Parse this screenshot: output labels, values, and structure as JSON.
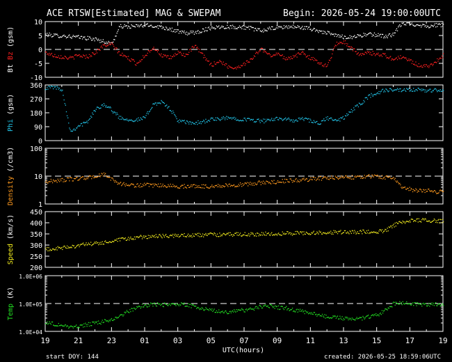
{
  "header": {
    "title": "ACE RTSW[Estimated] MAG & SWEPAM",
    "begin": "Begin: 2026-05-24 19:00:00UTC"
  },
  "footer": {
    "start_doy": "start DOY: 144",
    "created": "created: 2026-05-25 18:59:06UTC"
  },
  "colors": {
    "bt": "#ffffff",
    "bz": "#ff2020",
    "phi": "#22c4e8",
    "density": "#ff9a1e",
    "speed": "#f2ec1e",
    "temp": "#22e022",
    "frame": "#ffffff",
    "background": "#000000"
  },
  "chart_data": [
    {
      "type": "scatter",
      "id": "mag",
      "ylabel": [
        "Bt",
        "Bz",
        "(gsm)"
      ],
      "ylabel_colors": [
        "#ffffff",
        "#ff2020",
        "#ffffff"
      ],
      "ylim": [
        -10,
        10
      ],
      "yticks": [
        -10,
        -5,
        0,
        5,
        10
      ],
      "reference_line": 0,
      "series": [
        {
          "name": "Bt",
          "color": "#ffffff",
          "x": [
            0,
            0.5,
            1,
            1.5,
            2,
            2.5,
            3,
            3.5,
            4,
            4.5,
            5,
            5.5,
            6,
            6.5,
            7,
            7.5,
            8,
            8.5,
            9,
            9.5,
            10,
            10.5,
            11,
            11.5,
            12,
            12.5,
            13,
            13.5,
            14,
            14.5,
            15,
            15.5,
            16,
            16.5,
            17,
            17.5,
            18,
            18.5,
            19,
            19.5,
            20,
            20.5,
            21,
            21.5,
            22,
            22.5,
            23,
            23.5,
            24
          ],
          "y": [
            5.5,
            5.2,
            5,
            4.8,
            4.5,
            4.2,
            3.8,
            3,
            2.2,
            8.5,
            8.3,
            8.5,
            8.8,
            8.6,
            8.2,
            7.5,
            6.5,
            6,
            6.2,
            7,
            8,
            8.2,
            8.3,
            8.2,
            8.1,
            7.6,
            6.8,
            7.5,
            8,
            8.2,
            8.3,
            8,
            7.5,
            6.8,
            6,
            5.2,
            4.6,
            4.6,
            5.2,
            5.5,
            5.4,
            4.8,
            5.5,
            9.5,
            9.3,
            9,
            8.5,
            8.8,
            9
          ]
        },
        {
          "name": "Bz",
          "color": "#ff2020",
          "x": [
            0,
            0.5,
            1,
            1.5,
            2,
            2.5,
            3,
            3.5,
            4,
            4.5,
            5,
            5.5,
            6,
            6.5,
            7,
            7.5,
            8,
            8.5,
            9,
            9.5,
            10,
            10.5,
            11,
            11.5,
            12,
            12.5,
            13,
            13.5,
            14,
            14.5,
            15,
            15.5,
            16,
            16.5,
            17,
            17.5,
            18,
            18.5,
            19,
            19.5,
            20,
            20.5,
            21,
            21.5,
            22,
            22.5,
            23,
            23.5,
            24
          ],
          "y": [
            -1,
            -2,
            -2.5,
            -3,
            -2,
            -2.5,
            -1,
            1.5,
            2,
            -1.5,
            -3,
            -5,
            -2,
            1,
            -2,
            -3,
            -1,
            -2,
            1.5,
            -2,
            -5.5,
            -4,
            -6,
            -6.5,
            -5,
            -3,
            0.5,
            -2,
            -1.5,
            -3,
            -2.5,
            -1,
            -3,
            -4.5,
            -6,
            2,
            3,
            0.5,
            -2,
            -1,
            -1.5,
            -2,
            -3.5,
            -2.5,
            -4,
            -5.5,
            -6,
            -4.5,
            -2
          ]
        }
      ]
    },
    {
      "type": "scatter",
      "id": "phi",
      "ylabel": [
        "Phi",
        "(gsm)"
      ],
      "ylabel_colors": [
        "#22c4e8",
        "#ffffff"
      ],
      "ylim": [
        0,
        360
      ],
      "yticks": [
        0,
        90,
        180,
        270,
        360
      ],
      "series": [
        {
          "name": "Phi",
          "color": "#22c4e8",
          "x": [
            0,
            0.5,
            1,
            1.5,
            2,
            2.5,
            3,
            3.5,
            4,
            4.5,
            5,
            5.5,
            6,
            6.5,
            7,
            7.5,
            8,
            8.5,
            9,
            9.5,
            10,
            10.5,
            11,
            11.5,
            12,
            12.5,
            13,
            13.5,
            14,
            14.5,
            15,
            15.5,
            16,
            16.5,
            17,
            17.5,
            18,
            18.5,
            19,
            19.5,
            20,
            20.5,
            21,
            21.5,
            22,
            22.5,
            23,
            23.5,
            24
          ],
          "y": [
            345,
            350,
            335,
            60,
            100,
            120,
            200,
            240,
            200,
            150,
            140,
            135,
            150,
            240,
            250,
            210,
            130,
            120,
            115,
            125,
            140,
            140,
            150,
            145,
            140,
            135,
            130,
            130,
            150,
            140,
            130,
            145,
            130,
            110,
            150,
            130,
            150,
            200,
            240,
            290,
            310,
            330,
            330,
            325,
            330,
            330,
            325,
            330,
            325
          ]
        }
      ]
    },
    {
      "type": "scatter",
      "id": "density",
      "ylabel": [
        "Density",
        "(/cm3)"
      ],
      "ylabel_colors": [
        "#ff9a1e",
        "#ffffff"
      ],
      "yscale": "log",
      "ylim": [
        1,
        100
      ],
      "yticks": [
        1,
        10,
        100
      ],
      "reference_line": 10,
      "series": [
        {
          "name": "Density",
          "color": "#ff9a1e",
          "x": [
            0,
            0.5,
            1,
            1.5,
            2,
            2.5,
            3,
            3.5,
            4,
            4.5,
            5,
            5.5,
            6,
            6.5,
            7,
            7.5,
            8,
            8.5,
            9,
            9.5,
            10,
            10.5,
            11,
            11.5,
            12,
            12.5,
            13,
            13.5,
            14,
            14.5,
            15,
            15.5,
            16,
            16.5,
            17,
            17.5,
            18,
            18.5,
            19,
            19.5,
            20,
            20.5,
            21,
            21.5,
            22,
            22.5,
            23,
            23.5,
            24
          ],
          "y": [
            6.5,
            7,
            7.5,
            8,
            8.5,
            9,
            10,
            12,
            8,
            5.5,
            5,
            4.8,
            5,
            4.6,
            4.8,
            4.6,
            4.4,
            4.5,
            4.6,
            4.4,
            4.5,
            4.6,
            4.8,
            5,
            5.2,
            5.5,
            6,
            6.2,
            6.5,
            7,
            7.2,
            7.5,
            8,
            8.5,
            9,
            9.2,
            9.5,
            9.5,
            10,
            10.2,
            10,
            9.5,
            9,
            4,
            3.5,
            3,
            3.2,
            2.8,
            3
          ]
        }
      ]
    },
    {
      "type": "scatter",
      "id": "speed",
      "ylabel": [
        "Speed",
        "(km/s)"
      ],
      "ylabel_colors": [
        "#f2ec1e",
        "#ffffff"
      ],
      "ylim": [
        200,
        450
      ],
      "yticks": [
        200,
        250,
        300,
        350,
        400,
        450
      ],
      "series": [
        {
          "name": "Speed",
          "color": "#f2ec1e",
          "x": [
            0,
            0.5,
            1,
            1.5,
            2,
            2.5,
            3,
            3.5,
            4,
            4.5,
            5,
            5.5,
            6,
            6.5,
            7,
            7.5,
            8,
            8.5,
            9,
            9.5,
            10,
            10.5,
            11,
            11.5,
            12,
            12.5,
            13,
            13.5,
            14,
            14.5,
            15,
            15.5,
            16,
            16.5,
            17,
            17.5,
            18,
            18.5,
            19,
            19.5,
            20,
            20.5,
            21,
            21.5,
            22,
            22.5,
            23,
            23.5,
            24
          ],
          "y": [
            282,
            285,
            288,
            295,
            300,
            305,
            308,
            312,
            318,
            325,
            330,
            335,
            340,
            340,
            342,
            343,
            345,
            345,
            346,
            347,
            348,
            348,
            349,
            350,
            350,
            350,
            351,
            352,
            353,
            354,
            355,
            356,
            356,
            357,
            358,
            359,
            360,
            360,
            361,
            362,
            363,
            365,
            390,
            405,
            410,
            412,
            415,
            410,
            408
          ]
        }
      ]
    },
    {
      "type": "scatter",
      "id": "temp",
      "ylabel": [
        "Temp",
        "(K)"
      ],
      "ylabel_colors": [
        "#22e022",
        "#ffffff"
      ],
      "yscale": "log",
      "ylim": [
        10000,
        1000000
      ],
      "yticks": [
        10000,
        100000,
        1000000
      ],
      "ytick_labels": [
        "1.0E+04",
        "1.0E+05",
        "1.0E+06"
      ],
      "reference_line": 100000,
      "series": [
        {
          "name": "Temp",
          "color": "#22e022",
          "x": [
            0,
            0.5,
            1,
            1.5,
            2,
            2.5,
            3,
            3.5,
            4,
            4.5,
            5,
            5.5,
            6,
            6.5,
            7,
            7.5,
            8,
            8.5,
            9,
            9.5,
            10,
            10.5,
            11,
            11.5,
            12,
            12.5,
            13,
            13.5,
            14,
            14.5,
            15,
            15.5,
            16,
            16.5,
            17,
            17.5,
            18,
            18.5,
            19,
            19.5,
            20,
            20.5,
            21,
            21.5,
            22,
            22.5,
            23,
            23.5,
            24
          ],
          "y": [
            22000,
            19000,
            17000,
            15000,
            16000,
            18000,
            20000,
            23000,
            28000,
            35000,
            55000,
            75000,
            90000,
            95000,
            95000,
            90000,
            100000,
            90000,
            80000,
            70000,
            60000,
            55000,
            50000,
            55000,
            60000,
            65000,
            80000,
            85000,
            75000,
            70000,
            60000,
            55000,
            45000,
            40000,
            35000,
            32000,
            30000,
            28000,
            30000,
            35000,
            40000,
            60000,
            100000,
            110000,
            105000,
            100000,
            95000,
            100000,
            95000
          ]
        }
      ]
    }
  ],
  "xaxis": {
    "label": "UTC(hours)",
    "tick_labels": [
      "19",
      "21",
      "23",
      "01",
      "03",
      "05",
      "07",
      "09",
      "11",
      "13",
      "15",
      "17",
      "19"
    ],
    "tick_hours": [
      0,
      2,
      4,
      6,
      8,
      10,
      12,
      14,
      16,
      18,
      20,
      22,
      24
    ],
    "range": [
      0,
      24
    ]
  }
}
